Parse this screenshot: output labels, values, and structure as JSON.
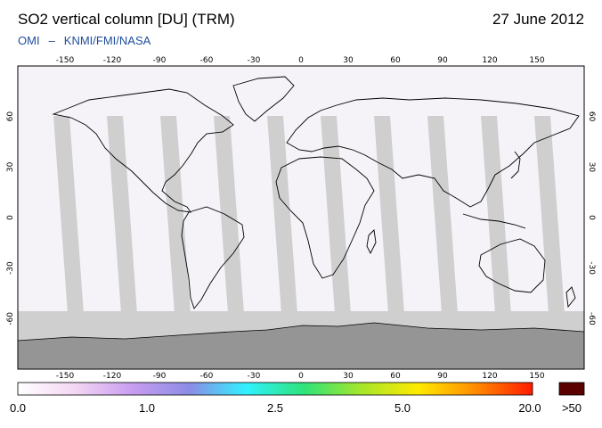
{
  "header": {
    "title": "SO2 vertical column [DU] (TRM)",
    "date": "27 June 2012",
    "source_prefix": "OMI",
    "source_dash": "–",
    "source": "KNMI/FMI/NASA"
  },
  "map": {
    "projection": "equirectangular",
    "lon_range": [
      -180,
      180
    ],
    "lat_range": [
      -90,
      90
    ],
    "lon_ticks": [
      "-150",
      "-120",
      "-90",
      "-60",
      "-30",
      "0",
      "30",
      "60",
      "90",
      "120",
      "150"
    ],
    "lat_ticks": [
      "60",
      "30",
      "0",
      "-30",
      "-60"
    ],
    "colors": {
      "no_data": "#cfcfcf",
      "valid_data": "#f6f3f8",
      "land_no_data": "#959595",
      "coastline": "#000000"
    }
  },
  "colorbar": {
    "labels": [
      "0.0",
      "1.0",
      "2.5",
      "5.0",
      "20.0",
      ">50"
    ],
    "gradient_colors": [
      "#ffffff",
      "#f3d6f3",
      "#c89df0",
      "#8c8ce6",
      "#2ff2ff",
      "#2ee37a",
      "#a5e62a",
      "#ffea00",
      "#ff8c00",
      "#ff1a00"
    ],
    "overflow_color": "#5a0000"
  }
}
